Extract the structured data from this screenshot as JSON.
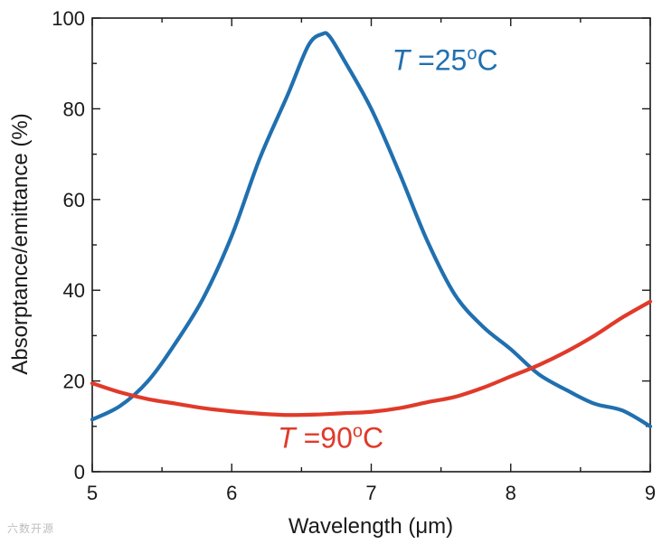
{
  "chart_data": {
    "type": "line",
    "title": "",
    "xlabel": "Wavelength (μm)",
    "ylabel": "Absorptance/emittance (%)",
    "xlim": [
      5,
      9
    ],
    "ylim": [
      0,
      100
    ],
    "xticks": [
      5,
      6,
      7,
      8,
      9
    ],
    "yticks": [
      0,
      20,
      40,
      60,
      80,
      100
    ],
    "grid": false,
    "series": [
      {
        "name": "T =25oC",
        "label_italic": "T",
        "label_rest": " =25",
        "label_sup": "o",
        "label_unit": "C",
        "color": "#2070b0",
        "x": [
          5.0,
          5.2,
          5.4,
          5.6,
          5.8,
          6.0,
          6.2,
          6.4,
          6.55,
          6.65,
          6.7,
          6.8,
          7.0,
          7.2,
          7.4,
          7.6,
          7.8,
          8.0,
          8.2,
          8.4,
          8.6,
          8.8,
          9.0
        ],
        "y": [
          11.5,
          14.5,
          20.0,
          28.5,
          38.5,
          52.0,
          69.0,
          83.0,
          94.0,
          96.5,
          96.0,
          91.0,
          80.0,
          66.0,
          51.0,
          39.0,
          32.0,
          27.0,
          21.5,
          18.0,
          15.0,
          13.5,
          10.0
        ]
      },
      {
        "name": "T =90oC",
        "label_italic": "T",
        "label_rest": " =90",
        "label_sup": "o",
        "label_unit": "C",
        "color": "#e03a2a",
        "x": [
          5.0,
          5.2,
          5.4,
          5.6,
          5.8,
          6.0,
          6.2,
          6.4,
          6.6,
          6.8,
          7.0,
          7.2,
          7.4,
          7.6,
          7.8,
          8.0,
          8.2,
          8.4,
          8.6,
          8.8,
          9.0
        ],
        "y": [
          19.5,
          17.5,
          16.0,
          15.0,
          14.0,
          13.3,
          12.8,
          12.5,
          12.6,
          12.9,
          13.2,
          14.0,
          15.3,
          16.5,
          18.5,
          21.0,
          23.5,
          26.5,
          30.0,
          34.0,
          37.5
        ]
      }
    ],
    "annotations": [
      {
        "series": 0,
        "x": 7.15,
        "y": 88.5
      },
      {
        "series": 1,
        "x": 6.33,
        "y": 5.3
      }
    ]
  },
  "watermark": "六数开源"
}
